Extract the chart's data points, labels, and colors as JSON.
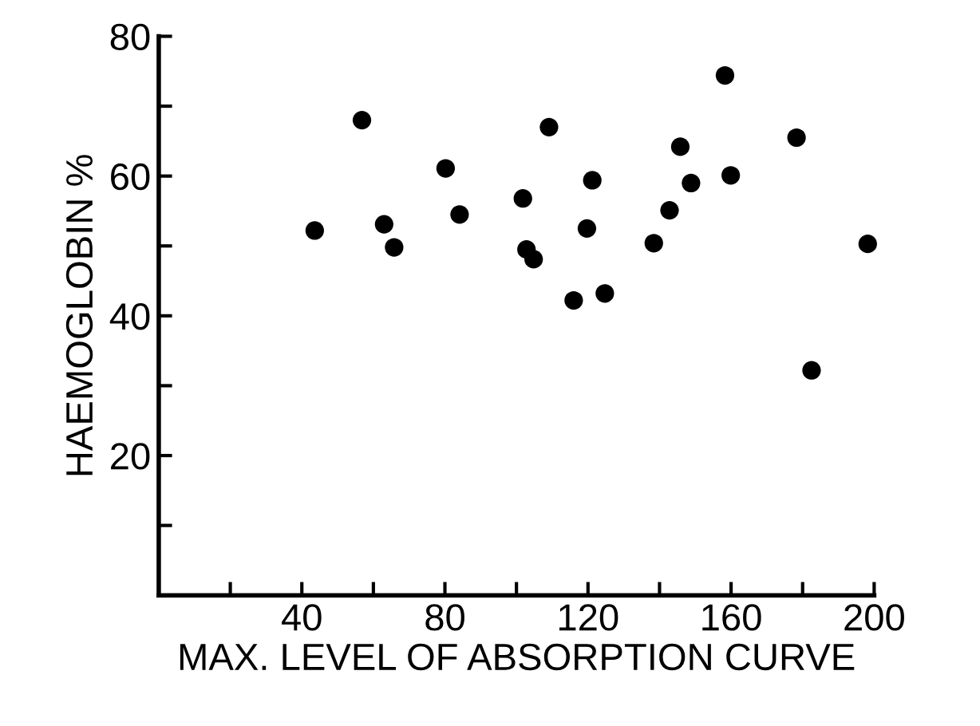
{
  "chart_data": {
    "type": "scatter",
    "xlabel": "MAX. LEVEL OF ABSORPTION CURVE",
    "ylabel": "HAEMOGLOBIN %",
    "x": [
      43.6,
      56.8,
      63.0,
      65.8,
      80.2,
      84.1,
      101.8,
      109.1,
      102.8,
      104.8,
      116.0,
      158.3,
      121.2,
      119.7,
      124.7,
      138.4,
      142.8,
      145.8,
      148.8,
      159.9,
      178.3,
      198.2,
      182.5
    ],
    "values": [
      52.2,
      68.0,
      53.1,
      49.8,
      61.1,
      54.5,
      56.8,
      67.0,
      49.5,
      48.1,
      42.2,
      74.4,
      59.4,
      52.5,
      43.2,
      50.4,
      55.1,
      64.2,
      59.0,
      60.1,
      65.5,
      50.3,
      32.2
    ],
    "color": "#000000",
    "marker": "circle",
    "grid": false,
    "xlim": [
      0,
      200
    ],
    "ylim": [
      0,
      80
    ],
    "xticks": [
      {
        "value": 20,
        "label": null
      },
      40,
      {
        "value": 60,
        "label": null
      },
      80,
      {
        "value": 100,
        "label": null
      },
      120,
      {
        "value": 140,
        "label": null
      },
      160,
      {
        "value": 180,
        "label": null
      },
      200
    ],
    "yticks": [
      {
        "value": 10,
        "label": null
      },
      20,
      {
        "value": 30,
        "label": null
      },
      40,
      {
        "value": 50,
        "label": null
      },
      60,
      {
        "value": 70,
        "label": null
      },
      80
    ]
  }
}
